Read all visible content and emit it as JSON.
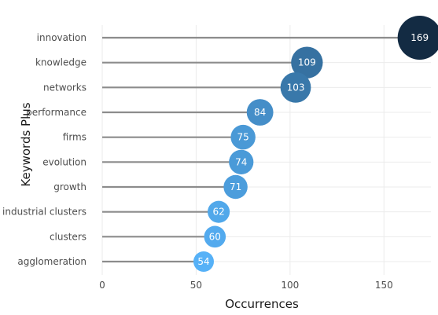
{
  "chart_data": {
    "type": "lollipop",
    "xlabel": "Occurrences",
    "ylabel": "Keywords Plus",
    "xlim": [
      0,
      175
    ],
    "xticks": [
      0,
      50,
      100,
      150
    ],
    "grid": true,
    "categories": [
      "innovation",
      "knowledge",
      "networks",
      "performance",
      "firms",
      "evolution",
      "growth",
      "industrial clusters",
      "clusters",
      "agglomeration"
    ],
    "values": [
      169,
      109,
      103,
      84,
      75,
      74,
      71,
      62,
      60,
      54
    ],
    "color_scale": {
      "low": "#56b1f7",
      "high": "#132b43"
    }
  }
}
